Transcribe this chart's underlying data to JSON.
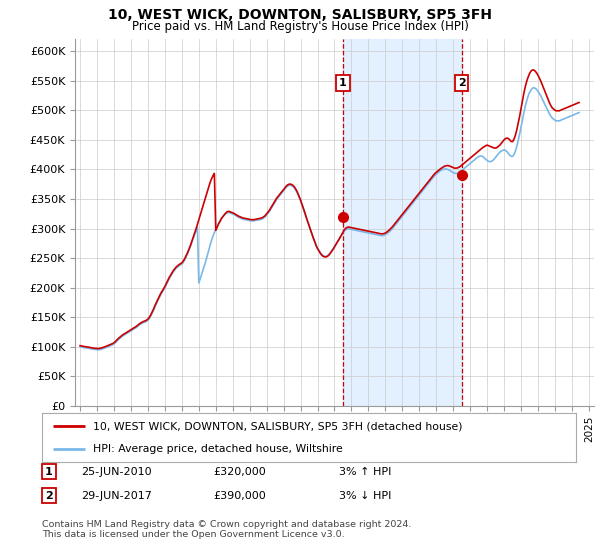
{
  "title": "10, WEST WICK, DOWNTON, SALISBURY, SP5 3FH",
  "subtitle": "Price paid vs. HM Land Registry's House Price Index (HPI)",
  "ylabel_ticks": [
    "£0",
    "£50K",
    "£100K",
    "£150K",
    "£200K",
    "£250K",
    "£300K",
    "£350K",
    "£400K",
    "£450K",
    "£500K",
    "£550K",
    "£600K"
  ],
  "ylim": [
    0,
    620000
  ],
  "ytick_vals": [
    0,
    50000,
    100000,
    150000,
    200000,
    250000,
    300000,
    350000,
    400000,
    450000,
    500000,
    550000,
    600000
  ],
  "hpi_color": "#7ab8e8",
  "price_color": "#cc0000",
  "background_color": "#ffffff",
  "grid_color": "#cccccc",
  "sale1_year": 2010.5,
  "sale1_price": 320000,
  "sale1_label": "1",
  "sale2_year": 2017.5,
  "sale2_price": 390000,
  "sale2_label": "2",
  "annotation1": [
    "1",
    "25-JUN-2010",
    "£320,000",
    "3% ↑ HPI"
  ],
  "annotation2": [
    "2",
    "29-JUN-2017",
    "£390,000",
    "3% ↓ HPI"
  ],
  "legend_line1": "10, WEST WICK, DOWNTON, SALISBURY, SP5 3FH (detached house)",
  "legend_line2": "HPI: Average price, detached house, Wiltshire",
  "footnote": "Contains HM Land Registry data © Crown copyright and database right 2024.\nThis data is licensed under the Open Government Licence v3.0.",
  "hpi_data_years": [
    1995.0,
    1995.083,
    1995.167,
    1995.25,
    1995.333,
    1995.417,
    1995.5,
    1995.583,
    1995.667,
    1995.75,
    1995.833,
    1995.917,
    1996.0,
    1996.083,
    1996.167,
    1996.25,
    1996.333,
    1996.417,
    1996.5,
    1996.583,
    1996.667,
    1996.75,
    1996.833,
    1996.917,
    1997.0,
    1997.083,
    1997.167,
    1997.25,
    1997.333,
    1997.417,
    1997.5,
    1997.583,
    1997.667,
    1997.75,
    1997.833,
    1997.917,
    1998.0,
    1998.083,
    1998.167,
    1998.25,
    1998.333,
    1998.417,
    1998.5,
    1998.583,
    1998.667,
    1998.75,
    1998.833,
    1998.917,
    1999.0,
    1999.083,
    1999.167,
    1999.25,
    1999.333,
    1999.417,
    1999.5,
    1999.583,
    1999.667,
    1999.75,
    1999.833,
    1999.917,
    2000.0,
    2000.083,
    2000.167,
    2000.25,
    2000.333,
    2000.417,
    2000.5,
    2000.583,
    2000.667,
    2000.75,
    2000.833,
    2000.917,
    2001.0,
    2001.083,
    2001.167,
    2001.25,
    2001.333,
    2001.417,
    2001.5,
    2001.583,
    2001.667,
    2001.75,
    2001.833,
    2001.917,
    2002.0,
    2002.083,
    2002.167,
    2002.25,
    2002.333,
    2002.417,
    2002.5,
    2002.583,
    2002.667,
    2002.75,
    2002.833,
    2002.917,
    2003.0,
    2003.083,
    2003.167,
    2003.25,
    2003.333,
    2003.417,
    2003.5,
    2003.583,
    2003.667,
    2003.75,
    2003.833,
    2003.917,
    2004.0,
    2004.083,
    2004.167,
    2004.25,
    2004.333,
    2004.417,
    2004.5,
    2004.583,
    2004.667,
    2004.75,
    2004.833,
    2004.917,
    2005.0,
    2005.083,
    2005.167,
    2005.25,
    2005.333,
    2005.417,
    2005.5,
    2005.583,
    2005.667,
    2005.75,
    2005.833,
    2005.917,
    2006.0,
    2006.083,
    2006.167,
    2006.25,
    2006.333,
    2006.417,
    2006.5,
    2006.583,
    2006.667,
    2006.75,
    2006.833,
    2006.917,
    2007.0,
    2007.083,
    2007.167,
    2007.25,
    2007.333,
    2007.417,
    2007.5,
    2007.583,
    2007.667,
    2007.75,
    2007.833,
    2007.917,
    2008.0,
    2008.083,
    2008.167,
    2008.25,
    2008.333,
    2008.417,
    2008.5,
    2008.583,
    2008.667,
    2008.75,
    2008.833,
    2008.917,
    2009.0,
    2009.083,
    2009.167,
    2009.25,
    2009.333,
    2009.417,
    2009.5,
    2009.583,
    2009.667,
    2009.75,
    2009.833,
    2009.917,
    2010.0,
    2010.083,
    2010.167,
    2010.25,
    2010.333,
    2010.417,
    2010.5,
    2010.583,
    2010.667,
    2010.75,
    2010.833,
    2010.917,
    2011.0,
    2011.083,
    2011.167,
    2011.25,
    2011.333,
    2011.417,
    2011.5,
    2011.583,
    2011.667,
    2011.75,
    2011.833,
    2011.917,
    2012.0,
    2012.083,
    2012.167,
    2012.25,
    2012.333,
    2012.417,
    2012.5,
    2012.583,
    2012.667,
    2012.75,
    2012.833,
    2012.917,
    2013.0,
    2013.083,
    2013.167,
    2013.25,
    2013.333,
    2013.417,
    2013.5,
    2013.583,
    2013.667,
    2013.75,
    2013.833,
    2013.917,
    2014.0,
    2014.083,
    2014.167,
    2014.25,
    2014.333,
    2014.417,
    2014.5,
    2014.583,
    2014.667,
    2014.75,
    2014.833,
    2014.917,
    2015.0,
    2015.083,
    2015.167,
    2015.25,
    2015.333,
    2015.417,
    2015.5,
    2015.583,
    2015.667,
    2015.75,
    2015.833,
    2015.917,
    2016.0,
    2016.083,
    2016.167,
    2016.25,
    2016.333,
    2016.417,
    2016.5,
    2016.583,
    2016.667,
    2016.75,
    2016.833,
    2016.917,
    2017.0,
    2017.083,
    2017.167,
    2017.25,
    2017.333,
    2017.417,
    2017.5,
    2017.583,
    2017.667,
    2017.75,
    2017.833,
    2017.917,
    2018.0,
    2018.083,
    2018.167,
    2018.25,
    2018.333,
    2018.417,
    2018.5,
    2018.583,
    2018.667,
    2018.75,
    2018.833,
    2018.917,
    2019.0,
    2019.083,
    2019.167,
    2019.25,
    2019.333,
    2019.417,
    2019.5,
    2019.583,
    2019.667,
    2019.75,
    2019.833,
    2019.917,
    2020.0,
    2020.083,
    2020.167,
    2020.25,
    2020.333,
    2020.417,
    2020.5,
    2020.583,
    2020.667,
    2020.75,
    2020.833,
    2020.917,
    2021.0,
    2021.083,
    2021.167,
    2021.25,
    2021.333,
    2021.417,
    2021.5,
    2021.583,
    2021.667,
    2021.75,
    2021.833,
    2021.917,
    2022.0,
    2022.083,
    2022.167,
    2022.25,
    2022.333,
    2022.417,
    2022.5,
    2022.583,
    2022.667,
    2022.75,
    2022.833,
    2022.917,
    2023.0,
    2023.083,
    2023.167,
    2023.25,
    2023.333,
    2023.417,
    2023.5,
    2023.583,
    2023.667,
    2023.75,
    2023.833,
    2023.917,
    2024.0,
    2024.083,
    2024.167,
    2024.25,
    2024.333,
    2024.417
  ],
  "hpi_data_vals": [
    100000,
    99500,
    99000,
    98500,
    98200,
    97800,
    97500,
    97000,
    96500,
    96000,
    95800,
    95500,
    95200,
    95000,
    95500,
    96000,
    96800,
    97500,
    98500,
    99500,
    100500,
    101500,
    102500,
    103500,
    105000,
    107000,
    109500,
    112000,
    114000,
    116000,
    118000,
    119500,
    121000,
    122500,
    124000,
    125500,
    127000,
    128500,
    130000,
    131500,
    133000,
    135000,
    137000,
    138500,
    140000,
    141000,
    142000,
    143000,
    145000,
    148000,
    152000,
    157000,
    162000,
    168000,
    173000,
    178000,
    183000,
    188000,
    192000,
    196000,
    200000,
    205000,
    210000,
    215000,
    219000,
    223000,
    227000,
    230000,
    233000,
    235000,
    237000,
    238500,
    240000,
    243000,
    247000,
    252000,
    257000,
    263000,
    269000,
    276000,
    283000,
    290000,
    296000,
    302000,
    208000,
    215000,
    222500,
    230000,
    237500,
    245500,
    254000,
    263000,
    272000,
    280000,
    287000,
    293000,
    299000,
    304000,
    309000,
    313000,
    317000,
    320000,
    323000,
    325000,
    326500,
    327000,
    326500,
    325500,
    324500,
    323500,
    322000,
    320500,
    319000,
    318000,
    317000,
    316000,
    315500,
    315000,
    314500,
    314000,
    313500,
    313000,
    313000,
    313000,
    313500,
    314000,
    314500,
    315000,
    315500,
    316500,
    318000,
    320000,
    323000,
    326000,
    329000,
    333000,
    337000,
    341000,
    345000,
    349000,
    352000,
    355000,
    358000,
    361000,
    364000,
    367000,
    370000,
    372000,
    373000,
    373000,
    372000,
    370000,
    367000,
    363000,
    358000,
    353000,
    347000,
    340000,
    333000,
    326000,
    319000,
    312000,
    305000,
    298000,
    291000,
    284000,
    278000,
    272000,
    267000,
    263000,
    259000,
    256000,
    254000,
    253000,
    253000,
    254000,
    256000,
    259000,
    262000,
    265500,
    269000,
    273000,
    277000,
    281000,
    285000,
    289000,
    293000,
    296000,
    298000,
    299000,
    299500,
    299000,
    298500,
    298000,
    297500,
    297000,
    296500,
    296000,
    295500,
    295000,
    294500,
    294000,
    293500,
    293000,
    292500,
    292000,
    291500,
    291000,
    290500,
    290000,
    289500,
    289000,
    288500,
    288000,
    288000,
    288500,
    289500,
    291000,
    293000,
    295000,
    297500,
    300000,
    303000,
    306000,
    309000,
    312000,
    315000,
    318000,
    321000,
    324000,
    327000,
    330000,
    333000,
    336000,
    339000,
    342000,
    345000,
    348000,
    351000,
    354000,
    357000,
    360000,
    363000,
    366000,
    369000,
    372000,
    375000,
    378000,
    381000,
    384000,
    387000,
    390000,
    392000,
    394000,
    396000,
    398000,
    399000,
    400000,
    400500,
    400500,
    400000,
    399000,
    397500,
    396000,
    394500,
    393500,
    393000,
    393500,
    394500,
    396000,
    398000,
    400000,
    402000,
    404000,
    406000,
    408000,
    410000,
    412000,
    414000,
    416000,
    418000,
    420000,
    421500,
    422500,
    422500,
    421500,
    419500,
    417000,
    415000,
    413500,
    413000,
    413500,
    415000,
    417500,
    420500,
    423500,
    426500,
    429000,
    431000,
    432000,
    433000,
    432000,
    430000,
    427000,
    424000,
    422000,
    422000,
    425000,
    431000,
    439000,
    449000,
    460000,
    472000,
    484000,
    496000,
    507000,
    516000,
    524000,
    530000,
    534000,
    537000,
    538000,
    537000,
    535000,
    532000,
    528000,
    524000,
    519000,
    514000,
    509000,
    504000,
    499000,
    494000,
    490000,
    487000,
    485000,
    483000,
    482000,
    482000,
    482000,
    483000,
    484000,
    485000,
    486000,
    487000,
    488000,
    489000,
    490000,
    491000,
    492000,
    493000,
    494000,
    495000,
    496000
  ],
  "price_data_years": [
    1995.0,
    1995.083,
    1995.167,
    1995.25,
    1995.333,
    1995.417,
    1995.5,
    1995.583,
    1995.667,
    1995.75,
    1995.833,
    1995.917,
    1996.0,
    1996.083,
    1996.167,
    1996.25,
    1996.333,
    1996.417,
    1996.5,
    1996.583,
    1996.667,
    1996.75,
    1996.833,
    1996.917,
    1997.0,
    1997.083,
    1997.167,
    1997.25,
    1997.333,
    1997.417,
    1997.5,
    1997.583,
    1997.667,
    1997.75,
    1997.833,
    1997.917,
    1998.0,
    1998.083,
    1998.167,
    1998.25,
    1998.333,
    1998.417,
    1998.5,
    1998.583,
    1998.667,
    1998.75,
    1998.833,
    1998.917,
    1999.0,
    1999.083,
    1999.167,
    1999.25,
    1999.333,
    1999.417,
    1999.5,
    1999.583,
    1999.667,
    1999.75,
    1999.833,
    1999.917,
    2000.0,
    2000.083,
    2000.167,
    2000.25,
    2000.333,
    2000.417,
    2000.5,
    2000.583,
    2000.667,
    2000.75,
    2000.833,
    2000.917,
    2001.0,
    2001.083,
    2001.167,
    2001.25,
    2001.333,
    2001.417,
    2001.5,
    2001.583,
    2001.667,
    2001.75,
    2001.833,
    2001.917,
    2002.0,
    2002.083,
    2002.167,
    2002.25,
    2002.333,
    2002.417,
    2002.5,
    2002.583,
    2002.667,
    2002.75,
    2002.833,
    2002.917,
    2003.0,
    2003.083,
    2003.167,
    2003.25,
    2003.333,
    2003.417,
    2003.5,
    2003.583,
    2003.667,
    2003.75,
    2003.833,
    2003.917,
    2004.0,
    2004.083,
    2004.167,
    2004.25,
    2004.333,
    2004.417,
    2004.5,
    2004.583,
    2004.667,
    2004.75,
    2004.833,
    2004.917,
    2005.0,
    2005.083,
    2005.167,
    2005.25,
    2005.333,
    2005.417,
    2005.5,
    2005.583,
    2005.667,
    2005.75,
    2005.833,
    2005.917,
    2006.0,
    2006.083,
    2006.167,
    2006.25,
    2006.333,
    2006.417,
    2006.5,
    2006.583,
    2006.667,
    2006.75,
    2006.833,
    2006.917,
    2007.0,
    2007.083,
    2007.167,
    2007.25,
    2007.333,
    2007.417,
    2007.5,
    2007.583,
    2007.667,
    2007.75,
    2007.833,
    2007.917,
    2008.0,
    2008.083,
    2008.167,
    2008.25,
    2008.333,
    2008.417,
    2008.5,
    2008.583,
    2008.667,
    2008.75,
    2008.833,
    2008.917,
    2009.0,
    2009.083,
    2009.167,
    2009.25,
    2009.333,
    2009.417,
    2009.5,
    2009.583,
    2009.667,
    2009.75,
    2009.833,
    2009.917,
    2010.0,
    2010.083,
    2010.167,
    2010.25,
    2010.333,
    2010.417,
    2010.5,
    2010.583,
    2010.667,
    2010.75,
    2010.833,
    2010.917,
    2011.0,
    2011.083,
    2011.167,
    2011.25,
    2011.333,
    2011.417,
    2011.5,
    2011.583,
    2011.667,
    2011.75,
    2011.833,
    2011.917,
    2012.0,
    2012.083,
    2012.167,
    2012.25,
    2012.333,
    2012.417,
    2012.5,
    2012.583,
    2012.667,
    2012.75,
    2012.833,
    2012.917,
    2013.0,
    2013.083,
    2013.167,
    2013.25,
    2013.333,
    2013.417,
    2013.5,
    2013.583,
    2013.667,
    2013.75,
    2013.833,
    2013.917,
    2014.0,
    2014.083,
    2014.167,
    2014.25,
    2014.333,
    2014.417,
    2014.5,
    2014.583,
    2014.667,
    2014.75,
    2014.833,
    2014.917,
    2015.0,
    2015.083,
    2015.167,
    2015.25,
    2015.333,
    2015.417,
    2015.5,
    2015.583,
    2015.667,
    2015.75,
    2015.833,
    2015.917,
    2016.0,
    2016.083,
    2016.167,
    2016.25,
    2016.333,
    2016.417,
    2016.5,
    2016.583,
    2016.667,
    2016.75,
    2016.833,
    2016.917,
    2017.0,
    2017.083,
    2017.167,
    2017.25,
    2017.333,
    2017.417,
    2017.5,
    2017.583,
    2017.667,
    2017.75,
    2017.833,
    2017.917,
    2018.0,
    2018.083,
    2018.167,
    2018.25,
    2018.333,
    2018.417,
    2018.5,
    2018.583,
    2018.667,
    2018.75,
    2018.833,
    2018.917,
    2019.0,
    2019.083,
    2019.167,
    2019.25,
    2019.333,
    2019.417,
    2019.5,
    2019.583,
    2019.667,
    2019.75,
    2019.833,
    2019.917,
    2020.0,
    2020.083,
    2020.167,
    2020.25,
    2020.333,
    2020.417,
    2020.5,
    2020.583,
    2020.667,
    2020.75,
    2020.833,
    2020.917,
    2021.0,
    2021.083,
    2021.167,
    2021.25,
    2021.333,
    2021.417,
    2021.5,
    2021.583,
    2021.667,
    2021.75,
    2021.833,
    2021.917,
    2022.0,
    2022.083,
    2022.167,
    2022.25,
    2022.333,
    2022.417,
    2022.5,
    2022.583,
    2022.667,
    2022.75,
    2022.833,
    2022.917,
    2023.0,
    2023.083,
    2023.167,
    2023.25,
    2023.333,
    2023.417,
    2023.5,
    2023.583,
    2023.667,
    2023.75,
    2023.833,
    2023.917,
    2024.0,
    2024.083,
    2024.167,
    2024.25,
    2024.333,
    2024.417
  ],
  "price_data_vals": [
    102000,
    101500,
    101000,
    100500,
    100200,
    99800,
    99500,
    99000,
    98500,
    98000,
    97800,
    97500,
    97200,
    97000,
    97500,
    98000,
    98800,
    99500,
    100500,
    101500,
    102500,
    103500,
    104500,
    105500,
    107000,
    109000,
    111500,
    114000,
    116000,
    118000,
    120000,
    121500,
    123000,
    124500,
    126000,
    127500,
    129000,
    130500,
    132000,
    133500,
    135000,
    137000,
    139000,
    140500,
    142000,
    143000,
    144000,
    145000,
    147000,
    150000,
    154000,
    159000,
    164000,
    170000,
    175000,
    180000,
    185000,
    190000,
    194000,
    198000,
    202000,
    207000,
    212000,
    217000,
    221000,
    225000,
    229000,
    232000,
    235000,
    237000,
    239000,
    240500,
    242000,
    245000,
    249000,
    254000,
    259000,
    265000,
    271000,
    278000,
    285000,
    292000,
    299000,
    307000,
    315000,
    323000,
    331000,
    339000,
    347000,
    355000,
    363000,
    371000,
    378000,
    384000,
    389000,
    393000,
    297000,
    302000,
    308000,
    312000,
    317000,
    320000,
    323000,
    326000,
    328500,
    329000,
    328500,
    327500,
    326500,
    325500,
    324000,
    322500,
    321000,
    320000,
    319000,
    318000,
    317500,
    317000,
    316500,
    316000,
    315500,
    315000,
    315000,
    315000,
    315500,
    316000,
    316500,
    317000,
    317500,
    318500,
    320000,
    322000,
    325000,
    328000,
    331000,
    335000,
    339000,
    343000,
    347000,
    351000,
    354000,
    357000,
    360000,
    363000,
    366000,
    369000,
    372000,
    374000,
    375000,
    375000,
    374000,
    372000,
    369000,
    365000,
    360000,
    354000,
    348000,
    341000,
    334000,
    327000,
    319000,
    312000,
    305000,
    298000,
    291000,
    284000,
    278000,
    271000,
    266000,
    262000,
    258000,
    255000,
    253000,
    252000,
    252000,
    253000,
    255000,
    258000,
    261500,
    265000,
    269000,
    273000,
    277000,
    281000,
    285000,
    289500,
    294000,
    298000,
    300500,
    302000,
    302500,
    302000,
    301500,
    301000,
    300500,
    300000,
    299500,
    299000,
    298500,
    298000,
    297500,
    297000,
    296500,
    296000,
    295500,
    295000,
    294500,
    294000,
    293500,
    293000,
    292500,
    292000,
    291500,
    291000,
    291000,
    291500,
    292500,
    294000,
    296000,
    298000,
    300500,
    303000,
    306000,
    309000,
    312000,
    315000,
    318000,
    321000,
    324000,
    327000,
    330000,
    333000,
    336000,
    339000,
    342000,
    345000,
    348000,
    351000,
    354000,
    357000,
    360000,
    363000,
    366000,
    369000,
    372000,
    375000,
    378000,
    381000,
    384000,
    387000,
    390000,
    393000,
    395000,
    397000,
    399000,
    401000,
    402500,
    404000,
    405500,
    406000,
    406500,
    406000,
    405000,
    404000,
    403000,
    402000,
    402000,
    402500,
    403500,
    405000,
    407000,
    409000,
    411000,
    413000,
    415000,
    417000,
    419000,
    421000,
    423000,
    425000,
    427000,
    429000,
    431000,
    433000,
    435000,
    437000,
    438500,
    440000,
    441000,
    440000,
    439000,
    438000,
    437000,
    436000,
    436000,
    437000,
    439000,
    441000,
    444000,
    447000,
    450000,
    452000,
    453000,
    452000,
    450000,
    447000,
    447000,
    451000,
    458000,
    467000,
    478000,
    490000,
    503000,
    516000,
    529000,
    540000,
    549000,
    556000,
    562000,
    566000,
    568000,
    568000,
    566000,
    563000,
    559000,
    554000,
    549000,
    543000,
    537000,
    531000,
    525000,
    519000,
    513000,
    508000,
    504000,
    502000,
    500000,
    499000,
    499000,
    499000,
    500000,
    501000,
    502000,
    503000,
    504000,
    505000,
    506000,
    507000,
    508000,
    509000,
    510000,
    511000,
    512000,
    513000
  ]
}
